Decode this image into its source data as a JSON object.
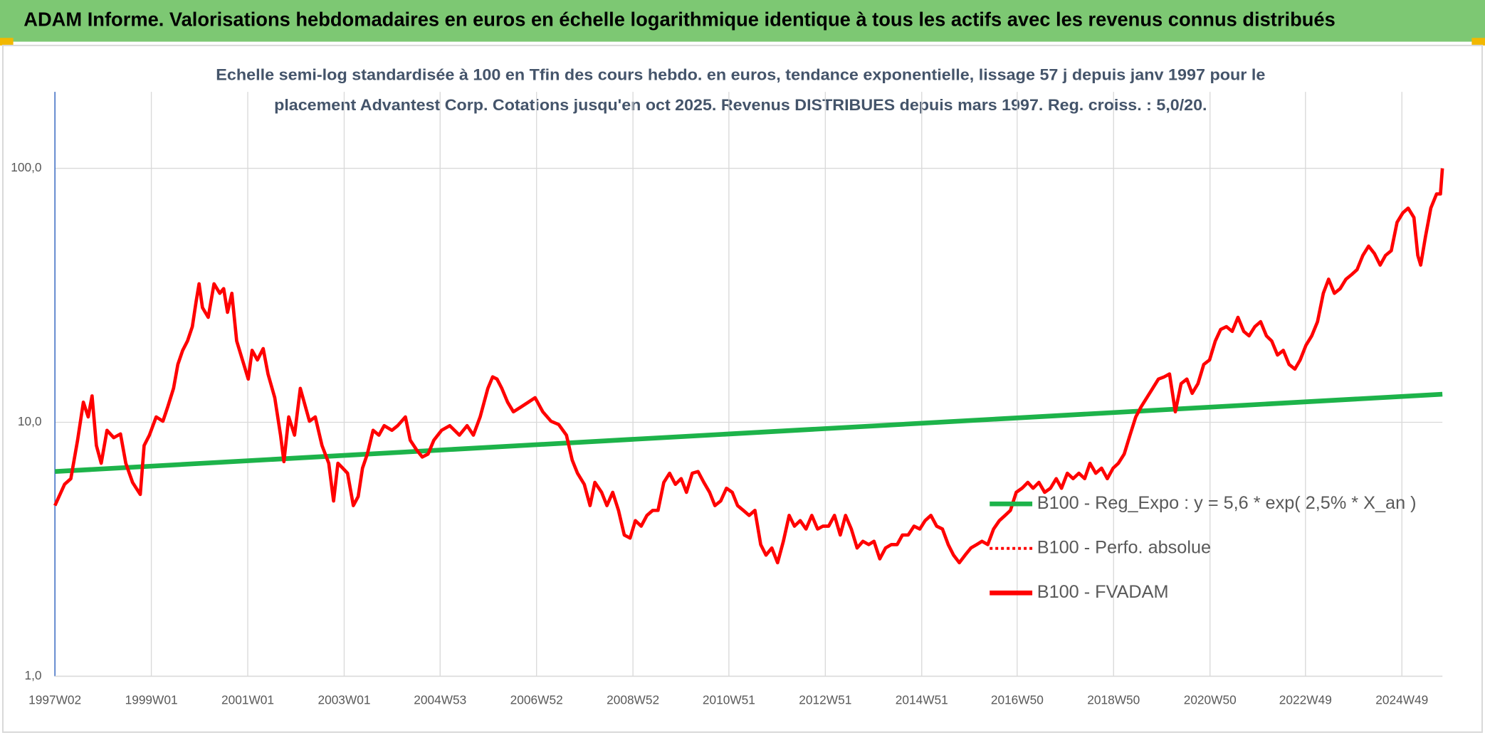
{
  "chart_data": {
    "type": "line",
    "title": "ADAM Informe. Valorisations hebdomadaires en euros en échelle logarithmique identique à tous les actifs avec les revenus connus distribués",
    "subtitle": [
      "Echelle semi-log standardisée à 100 en Tfin des cours hebdo. en euros, tendance exponentielle, lissage 57 j depuis janv 1997 pour le",
      "placement Advantest Corp. Cotations jusqu'en oct 2025. Revenus DISTRIBUES depuis mars 1997. Reg. croiss. : 5,0/20."
    ],
    "xlim": [
      1997.0,
      2025.78
    ],
    "xticks": [
      {
        "value": 1997.0,
        "label": "1997W02"
      },
      {
        "value": 1999.0,
        "label": "1999W01"
      },
      {
        "value": 2001.0,
        "label": "2001W01"
      },
      {
        "value": 2003.0,
        "label": "2003W01"
      },
      {
        "value": 2004.99,
        "label": "2004W53"
      },
      {
        "value": 2006.99,
        "label": "2006W52"
      },
      {
        "value": 2008.99,
        "label": "2008W52"
      },
      {
        "value": 2010.98,
        "label": "2010W51"
      },
      {
        "value": 2012.98,
        "label": "2012W51"
      },
      {
        "value": 2014.98,
        "label": "2014W51"
      },
      {
        "value": 2016.96,
        "label": "2016W50"
      },
      {
        "value": 2018.96,
        "label": "2018W50"
      },
      {
        "value": 2020.96,
        "label": "2020W50"
      },
      {
        "value": 2022.94,
        "label": "2022W49"
      },
      {
        "value": 2024.94,
        "label": "2024W49"
      }
    ],
    "ylim": [
      1,
      200
    ],
    "yticks": [
      {
        "value": 1,
        "label": "1,0"
      },
      {
        "value": 10,
        "label": "10,0"
      },
      {
        "value": 100,
        "label": "100,0"
      }
    ],
    "log_scale": true,
    "grid": true,
    "legend": "right",
    "series": [
      {
        "name": "B100 - Reg_Expo : y = 5,6 * exp( 2,5% *  X_an )",
        "color": "#1db34a",
        "style": "solid",
        "x": [
          1997.0,
          2025.78
        ],
        "values": [
          6.4,
          12.9
        ]
      },
      {
        "name": "B100 - Perfo. absolue",
        "color": "#ff0000",
        "style": "dotted"
      },
      {
        "name": "B100 - FVADAM",
        "color": "#ff0000",
        "style": "solid",
        "x": [
          1997.0,
          1997.2,
          1997.33,
          1997.47,
          1997.59,
          1997.69,
          1997.77,
          1997.86,
          1997.96,
          1998.08,
          1998.22,
          1998.36,
          1998.47,
          1998.61,
          1998.77,
          1998.85,
          1998.96,
          1999.1,
          1999.24,
          1999.34,
          1999.46,
          1999.55,
          1999.65,
          1999.75,
          1999.85,
          1999.93,
          1999.99,
          2000.06,
          2000.18,
          2000.3,
          2000.42,
          2000.5,
          2000.58,
          2000.67,
          2000.77,
          2000.89,
          2001.01,
          2001.09,
          2001.2,
          2001.32,
          2001.42,
          2001.56,
          2001.68,
          2001.75,
          2001.85,
          2001.97,
          2002.09,
          2002.17,
          2002.28,
          2002.4,
          2002.54,
          2002.68,
          2002.78,
          2002.87,
          2002.97,
          2003.07,
          2003.19,
          2003.29,
          2003.38,
          2003.48,
          2003.6,
          2003.72,
          2003.83,
          2003.99,
          2004.11,
          2004.27,
          2004.37,
          2004.5,
          2004.62,
          2004.74,
          2004.86,
          2005.02,
          2005.19,
          2005.39,
          2005.55,
          2005.68,
          2005.82,
          2005.98,
          2006.08,
          2006.17,
          2006.27,
          2006.39,
          2006.51,
          2006.67,
          2006.82,
          2006.96,
          2007.12,
          2007.29,
          2007.45,
          2007.61,
          2007.73,
          2007.84,
          2007.98,
          2008.1,
          2008.2,
          2008.34,
          2008.45,
          2008.57,
          2008.69,
          2008.81,
          2008.93,
          2009.04,
          2009.16,
          2009.28,
          2009.4,
          2009.51,
          2009.63,
          2009.75,
          2009.87,
          2009.99,
          2010.1,
          2010.22,
          2010.34,
          2010.46,
          2010.58,
          2010.69,
          2010.81,
          2010.93,
          2011.05,
          2011.16,
          2011.28,
          2011.4,
          2011.52,
          2011.64,
          2011.75,
          2011.87,
          2011.99,
          2012.11,
          2012.23,
          2012.34,
          2012.46,
          2012.58,
          2012.7,
          2012.82,
          2012.93,
          2013.05,
          2013.17,
          2013.29,
          2013.4,
          2013.52,
          2013.64,
          2013.76,
          2013.88,
          2013.99,
          2014.11,
          2014.23,
          2014.35,
          2014.47,
          2014.58,
          2014.7,
          2014.82,
          2014.94,
          2015.05,
          2015.17,
          2015.29,
          2015.41,
          2015.53,
          2015.64,
          2015.76,
          2015.88,
          2016.0,
          2016.12,
          2016.23,
          2016.35,
          2016.47,
          2016.59,
          2016.71,
          2016.82,
          2016.94,
          2017.06,
          2017.18,
          2017.29,
          2017.41,
          2017.53,
          2017.65,
          2017.77,
          2017.88,
          2018.0,
          2018.12,
          2018.24,
          2018.36,
          2018.47,
          2018.59,
          2018.71,
          2018.83,
          2018.95,
          2019.06,
          2019.18,
          2019.3,
          2019.42,
          2019.53,
          2019.65,
          2019.77,
          2019.89,
          2020.01,
          2020.12,
          2020.24,
          2020.36,
          2020.48,
          2020.59,
          2020.71,
          2020.83,
          2020.95,
          2021.07,
          2021.18,
          2021.3,
          2021.42,
          2021.54,
          2021.66,
          2021.77,
          2021.89,
          2022.01,
          2022.13,
          2022.24,
          2022.36,
          2022.48,
          2022.6,
          2022.72,
          2022.83,
          2022.95,
          2023.07,
          2023.19,
          2023.31,
          2023.42,
          2023.54,
          2023.66,
          2023.78,
          2023.9,
          2024.01,
          2024.13,
          2024.25,
          2024.37,
          2024.49,
          2024.6,
          2024.72,
          2024.84,
          2024.96,
          2025.07,
          2025.19,
          2025.27,
          2025.33,
          2025.43,
          2025.54,
          2025.66,
          2025.74,
          2025.78
        ],
        "values": [
          4.7,
          5.7,
          6.0,
          8.5,
          12.0,
          10.5,
          12.7,
          8.1,
          6.9,
          9.3,
          8.7,
          9.0,
          6.9,
          5.8,
          5.2,
          8.1,
          8.9,
          10.5,
          10.1,
          11.5,
          13.6,
          16.9,
          19.2,
          20.9,
          23.8,
          30.0,
          35.1,
          28.3,
          25.9,
          35.1,
          32.2,
          33.6,
          27.1,
          32.2,
          20.9,
          17.6,
          14.8,
          19.2,
          17.6,
          19.5,
          15.5,
          12.5,
          8.9,
          7.0,
          10.5,
          8.9,
          13.6,
          12.0,
          10.1,
          10.5,
          8.1,
          6.9,
          4.9,
          6.9,
          6.6,
          6.3,
          4.7,
          5.1,
          6.6,
          7.5,
          9.3,
          8.9,
          9.7,
          9.3,
          9.7,
          10.5,
          8.5,
          7.8,
          7.3,
          7.5,
          8.5,
          9.3,
          9.7,
          8.9,
          9.7,
          8.9,
          10.5,
          13.6,
          15.1,
          14.8,
          13.6,
          12.0,
          11.0,
          11.5,
          12.0,
          12.5,
          11.0,
          10.1,
          9.8,
          8.9,
          7.1,
          6.3,
          5.7,
          4.7,
          5.8,
          5.3,
          4.7,
          5.3,
          4.5,
          3.6,
          3.5,
          4.1,
          3.9,
          4.3,
          4.5,
          4.5,
          5.8,
          6.3,
          5.7,
          6.0,
          5.3,
          6.3,
          6.4,
          5.8,
          5.3,
          4.7,
          4.9,
          5.5,
          5.3,
          4.7,
          4.5,
          4.3,
          4.5,
          3.3,
          3.0,
          3.2,
          2.8,
          3.4,
          4.3,
          3.9,
          4.1,
          3.8,
          4.3,
          3.8,
          3.9,
          3.9,
          4.3,
          3.6,
          4.3,
          3.8,
          3.2,
          3.4,
          3.3,
          3.4,
          2.9,
          3.2,
          3.3,
          3.3,
          3.6,
          3.6,
          3.9,
          3.8,
          4.1,
          4.3,
          3.9,
          3.8,
          3.3,
          3.0,
          2.8,
          3.0,
          3.2,
          3.3,
          3.4,
          3.3,
          3.8,
          4.1,
          4.3,
          4.5,
          5.3,
          5.5,
          5.8,
          5.5,
          5.8,
          5.3,
          5.5,
          6.0,
          5.5,
          6.3,
          6.0,
          6.3,
          6.0,
          6.9,
          6.3,
          6.6,
          6.0,
          6.6,
          6.9,
          7.5,
          8.9,
          10.5,
          11.5,
          12.5,
          13.6,
          14.8,
          15.1,
          15.5,
          11.0,
          14.2,
          14.8,
          13.0,
          14.2,
          16.9,
          17.6,
          20.9,
          23.2,
          23.8,
          22.8,
          25.9,
          22.8,
          21.9,
          23.8,
          24.9,
          21.9,
          20.9,
          18.4,
          19.2,
          16.9,
          16.2,
          17.6,
          20.1,
          21.9,
          24.9,
          32.2,
          36.6,
          32.2,
          33.6,
          36.6,
          38.2,
          39.9,
          45.4,
          49.4,
          46.2,
          41.6,
          45.4,
          47.4,
          61.3,
          66.8,
          69.7,
          64.0,
          45.4,
          41.6,
          53.9,
          69.7,
          79.3,
          79.3,
          100
        ]
      }
    ]
  }
}
